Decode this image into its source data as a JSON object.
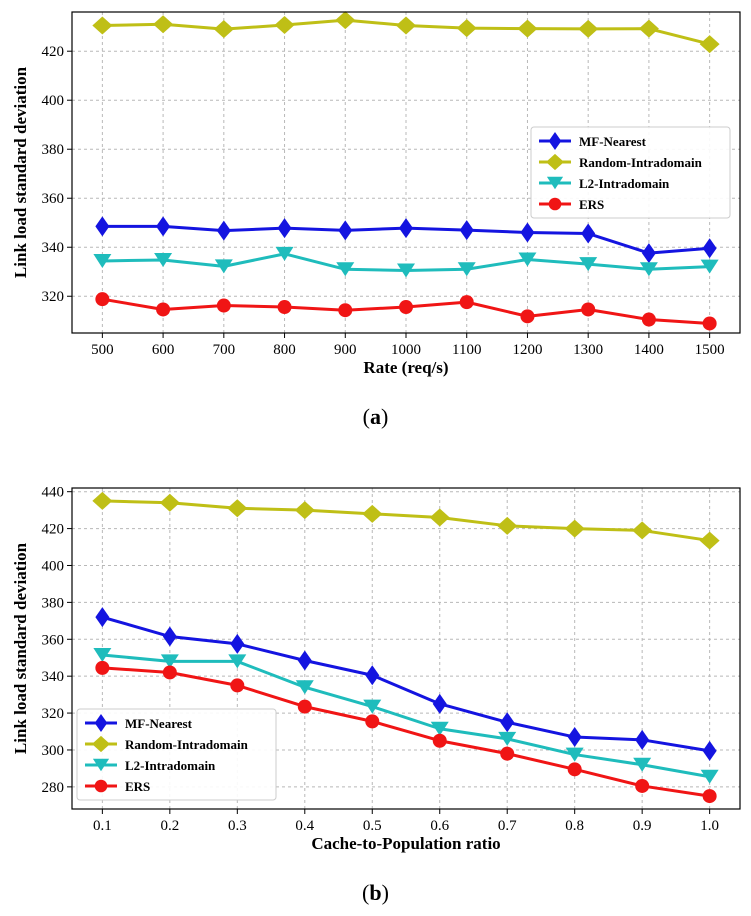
{
  "captions": {
    "a_letter": "a",
    "b_letter": "b"
  },
  "series_styles": [
    {
      "name": "MF-Nearest",
      "color": "#1414e0",
      "marker": "diamond-tall"
    },
    {
      "name": "Random-Intradomain",
      "color": "#bfbf16",
      "marker": "diamond"
    },
    {
      "name": "L2-Intradomain",
      "color": "#1fbcbc",
      "marker": "triangle-down"
    },
    {
      "name": "ERS",
      "color": "#f01515",
      "marker": "circle"
    }
  ],
  "chart_data": [
    {
      "type": "line",
      "id": "a",
      "xlabel": "Rate (req/s)",
      "ylabel": "Link load standard deviation",
      "x": [
        500,
        600,
        700,
        800,
        900,
        1000,
        1100,
        1200,
        1300,
        1400,
        1500
      ],
      "xlim": [
        450,
        1550
      ],
      "ylim": [
        305,
        436
      ],
      "xticks": [
        500,
        600,
        700,
        800,
        900,
        1000,
        1100,
        1200,
        1300,
        1400,
        1500
      ],
      "yticks": [
        320,
        340,
        360,
        380,
        400,
        420
      ],
      "grid": true,
      "legend": "center-right",
      "series": [
        {
          "name": "MF-Nearest",
          "values": [
            348.5,
            348.5,
            346.8,
            347.8,
            346.9,
            347.8,
            347.0,
            346.0,
            345.6,
            337.6,
            339.6
          ]
        },
        {
          "name": "Random-Intradomain",
          "values": [
            430.5,
            431.0,
            429.0,
            430.7,
            432.7,
            430.5,
            429.4,
            429.2,
            429.1,
            429.2,
            422.9
          ]
        },
        {
          "name": "L2-Intradomain",
          "values": [
            334.4,
            334.8,
            332.2,
            337.3,
            331.0,
            330.5,
            331.0,
            335.0,
            333.1,
            331.0,
            332.1
          ]
        },
        {
          "name": "ERS",
          "values": [
            318.8,
            314.6,
            316.2,
            315.6,
            314.3,
            315.6,
            317.6,
            311.8,
            314.6,
            310.5,
            308.9
          ]
        }
      ]
    },
    {
      "type": "line",
      "id": "b",
      "xlabel": "Cache-to-Population ratio",
      "ylabel": "Link load standard deviation",
      "x": [
        0.1,
        0.2,
        0.3,
        0.4,
        0.5,
        0.6,
        0.7,
        0.8,
        0.9,
        1.0
      ],
      "xticklabels": [
        "0.1",
        "0.2",
        "0.3",
        "0.4",
        "0.5",
        "0.6",
        "0.7",
        "0.8",
        "0.9",
        "1.0"
      ],
      "xlim": [
        0.055,
        1.045
      ],
      "ylim": [
        268,
        442
      ],
      "xticks": [
        0.1,
        0.2,
        0.3,
        0.4,
        0.5,
        0.6,
        0.7,
        0.8,
        0.9,
        1.0
      ],
      "yticks": [
        280,
        300,
        320,
        340,
        360,
        380,
        400,
        420,
        440
      ],
      "grid": true,
      "legend": "lower-left",
      "series": [
        {
          "name": "MF-Nearest",
          "values": [
            372.0,
            361.5,
            357.5,
            348.5,
            340.5,
            325.0,
            315.0,
            307.0,
            305.5,
            299.5
          ]
        },
        {
          "name": "Random-Intradomain",
          "values": [
            435.0,
            434.0,
            431.0,
            430.0,
            428.0,
            426.0,
            421.5,
            420.0,
            419.0,
            413.5
          ]
        },
        {
          "name": "L2-Intradomain",
          "values": [
            351.5,
            348.0,
            348.0,
            334.0,
            323.5,
            311.5,
            306.0,
            297.5,
            292.0,
            285.5
          ]
        },
        {
          "name": "ERS",
          "values": [
            344.5,
            342.0,
            335.0,
            323.5,
            315.5,
            305.0,
            298.0,
            289.5,
            280.5,
            275.0
          ]
        }
      ]
    }
  ]
}
